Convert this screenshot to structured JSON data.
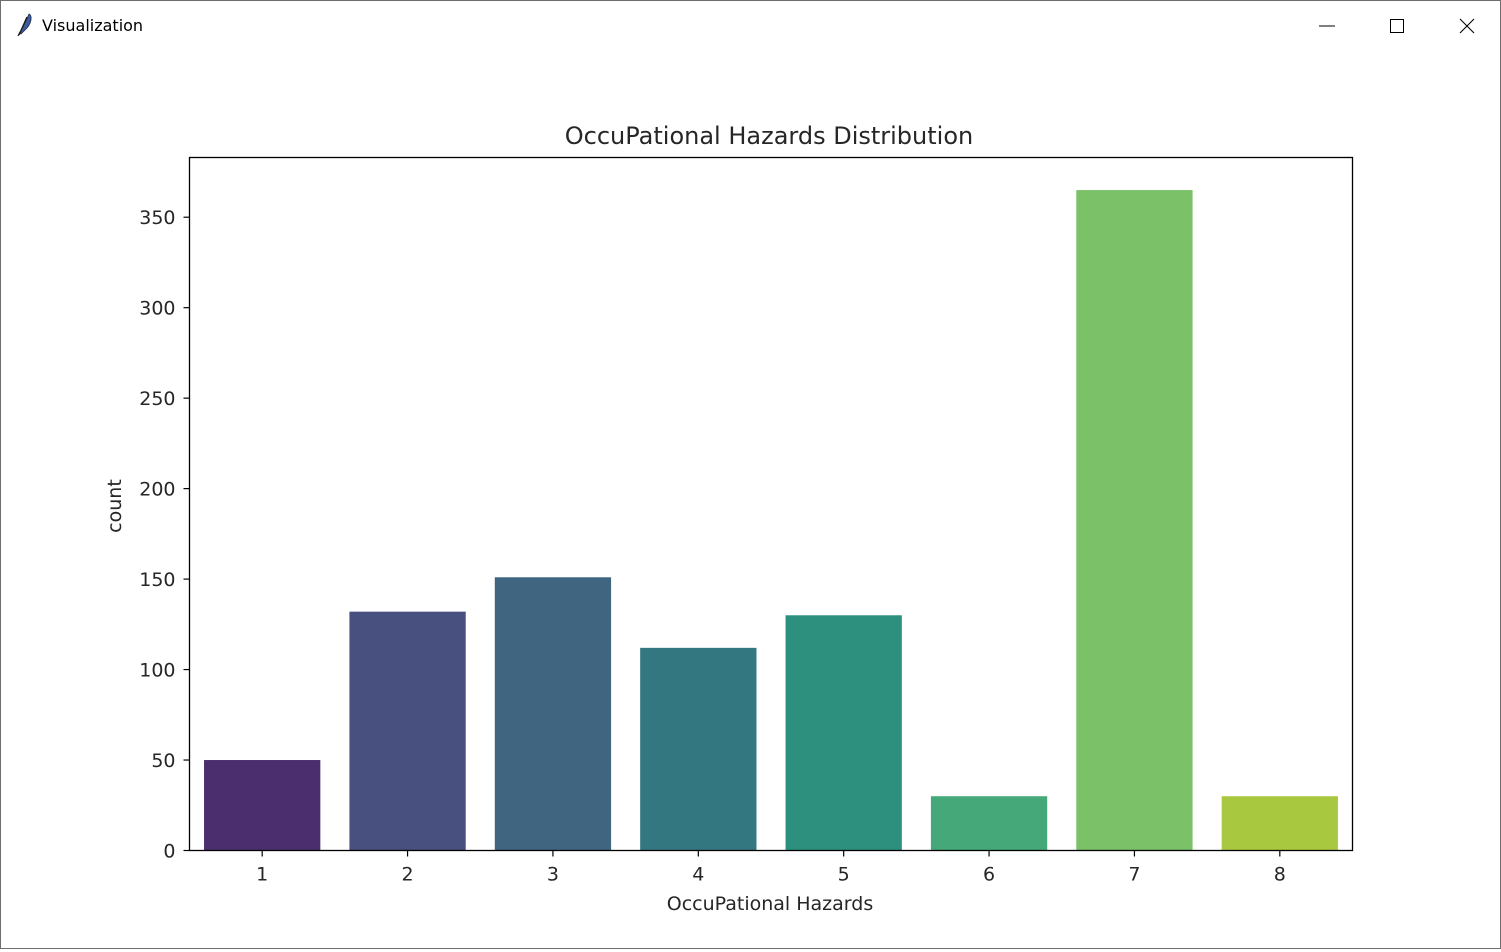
{
  "window": {
    "title": "Visualization",
    "icon": "feather-icon"
  },
  "controls": {
    "minimize_icon": "minimize-icon",
    "maximize_icon": "maximize-icon",
    "close_icon": "close-icon"
  },
  "chart_data": {
    "type": "bar",
    "title": "OccuPational Hazards Distribution",
    "xlabel": "OccuPational Hazards",
    "ylabel": "count",
    "categories": [
      "1",
      "2",
      "3",
      "4",
      "5",
      "6",
      "7",
      "8"
    ],
    "values": [
      50,
      132,
      151,
      112,
      130,
      30,
      365,
      30
    ],
    "colors": [
      "#4b2e6e",
      "#48507f",
      "#3f6580",
      "#337880",
      "#2d907e",
      "#45a878",
      "#7bc168",
      "#a8c840"
    ],
    "yticks": [
      0,
      50,
      100,
      150,
      200,
      250,
      300,
      350
    ],
    "ylim": [
      0,
      383
    ],
    "grid": false,
    "legend": false
  }
}
